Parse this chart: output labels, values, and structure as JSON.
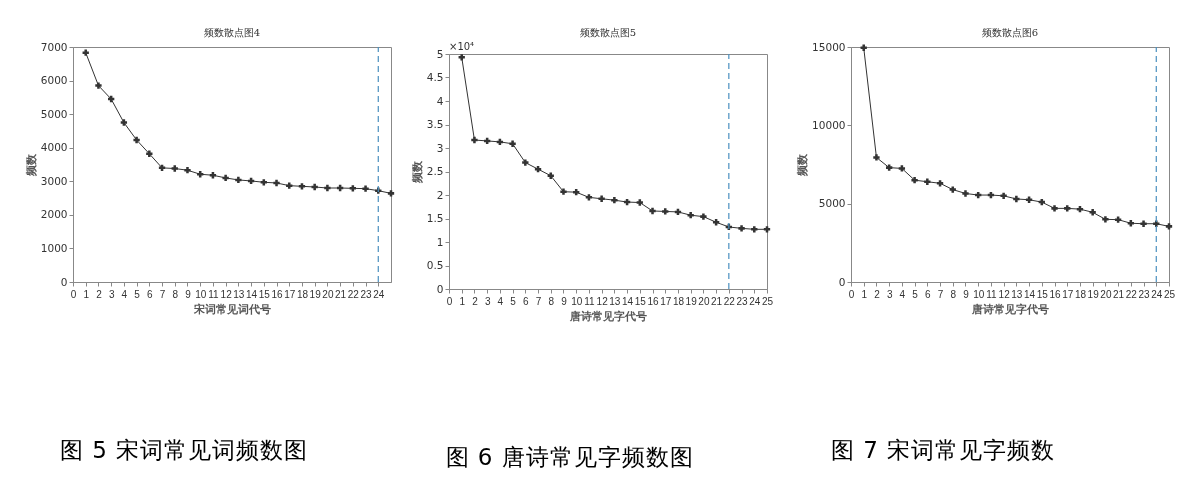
{
  "chart_data": [
    {
      "type": "line",
      "title": "频数散点图4",
      "subtitle": "图 5 宋词常见词频数图",
      "xlabel": "宋词常见词代号",
      "ylabel": "频数",
      "marker": "cross",
      "line_style": "solid",
      "grid": false,
      "x": [
        1,
        2,
        3,
        4,
        5,
        6,
        7,
        8,
        9,
        10,
        11,
        12,
        13,
        14,
        15,
        16,
        17,
        18,
        19,
        20,
        21,
        22,
        23,
        24,
        25
      ],
      "series": [
        {
          "color": "#333333",
          "values": [
            6830,
            5850,
            5450,
            4750,
            4230,
            3820,
            3400,
            3380,
            3330,
            3210,
            3180,
            3100,
            3040,
            3010,
            2970,
            2950,
            2870,
            2850,
            2830,
            2800,
            2800,
            2790,
            2780,
            2720,
            2640
          ]
        }
      ],
      "xlim": [
        0,
        25
      ],
      "xticks": [
        0,
        1,
        2,
        3,
        4,
        5,
        6,
        7,
        8,
        9,
        10,
        11,
        12,
        13,
        14,
        15,
        16,
        17,
        18,
        19,
        20,
        21,
        22,
        23,
        24
      ],
      "ylim": [
        0,
        7000
      ],
      "yticks": [
        0,
        1000,
        2000,
        3000,
        4000,
        5000,
        6000,
        7000
      ],
      "ref_lines": [
        {
          "axis": "x",
          "value": 24,
          "color": "#4a8fbf",
          "line_style": "dashed"
        }
      ]
    },
    {
      "type": "line",
      "title": "频数散点图5",
      "subtitle": "图 6 唐诗常见字频数图",
      "xlabel": "唐诗常见字代号",
      "ylabel": "频数",
      "annotations": [
        "×10⁴"
      ],
      "marker": "cross",
      "line_style": "solid",
      "grid": false,
      "x": [
        1,
        2,
        3,
        4,
        5,
        6,
        7,
        8,
        9,
        10,
        11,
        12,
        13,
        14,
        15,
        16,
        17,
        18,
        19,
        20,
        21,
        22,
        23,
        24,
        25
      ],
      "series": [
        {
          "color": "#333333",
          "values": [
            4.93,
            3.17,
            3.15,
            3.13,
            3.09,
            2.69,
            2.55,
            2.41,
            2.07,
            2.06,
            1.95,
            1.92,
            1.89,
            1.85,
            1.84,
            1.66,
            1.65,
            1.64,
            1.57,
            1.54,
            1.42,
            1.32,
            1.29,
            1.27,
            1.27
          ]
        }
      ],
      "xlim": [
        0,
        25
      ],
      "xticks": [
        0,
        1,
        2,
        3,
        4,
        5,
        6,
        7,
        8,
        9,
        10,
        11,
        12,
        13,
        14,
        15,
        16,
        17,
        18,
        19,
        20,
        21,
        22,
        23,
        24,
        25
      ],
      "ylim": [
        0,
        5
      ],
      "yticks": [
        0,
        0.5,
        1,
        1.5,
        2,
        2.5,
        3,
        3.5,
        4,
        4.5,
        5
      ],
      "ref_lines": [
        {
          "axis": "x",
          "value": 22,
          "color": "#4a8fbf",
          "line_style": "dashed"
        }
      ]
    },
    {
      "type": "line",
      "title": "频数散点图6",
      "subtitle": "图 7 宋词常见字频数",
      "xlabel": "唐诗常见字代号",
      "ylabel": "频数",
      "marker": "cross",
      "line_style": "solid",
      "grid": false,
      "x": [
        1,
        2,
        3,
        4,
        5,
        6,
        7,
        8,
        9,
        10,
        11,
        12,
        13,
        14,
        15,
        16,
        17,
        18,
        19,
        20,
        21,
        22,
        23,
        24,
        25
      ],
      "series": [
        {
          "color": "#333333",
          "values": [
            14950,
            7950,
            7300,
            7250,
            6500,
            6400,
            6300,
            5900,
            5650,
            5550,
            5550,
            5500,
            5300,
            5250,
            5100,
            4700,
            4700,
            4650,
            4450,
            4000,
            3980,
            3750,
            3720,
            3720,
            3550
          ]
        }
      ],
      "xlim": [
        0,
        25
      ],
      "xticks": [
        0,
        1,
        2,
        3,
        4,
        5,
        6,
        7,
        8,
        9,
        10,
        11,
        12,
        13,
        14,
        15,
        16,
        17,
        18,
        19,
        20,
        21,
        22,
        23,
        24,
        25
      ],
      "ylim": [
        0,
        15000
      ],
      "yticks": [
        0,
        5000,
        10000,
        15000
      ],
      "ref_lines": [
        {
          "axis": "x",
          "value": 24,
          "color": "#4a8fbf",
          "line_style": "dashed"
        }
      ]
    }
  ]
}
